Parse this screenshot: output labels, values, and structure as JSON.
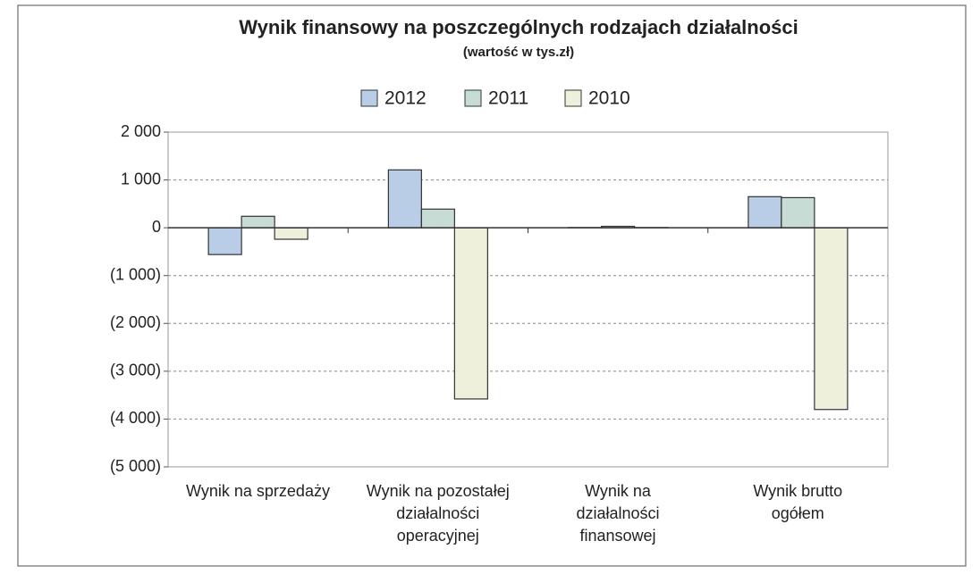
{
  "chart_data": {
    "type": "bar",
    "title": "Wynik finansowy na poszczególnych rodzajach działalności",
    "subtitle": "(wartość w tys.zł)",
    "categories": [
      "Wynik na sprzedaży",
      "Wynik na pozostałej\ndziałalności\noperacyjnej",
      "Wynik na\ndziałalności\nfinansowej",
      "Wynik brutto\nogółem"
    ],
    "series": [
      {
        "name": "2012",
        "color": "#b9cde6",
        "values": [
          -560,
          1210,
          5,
          650
        ]
      },
      {
        "name": "2011",
        "color": "#c6dcd5",
        "values": [
          240,
          390,
          30,
          630
        ]
      },
      {
        "name": "2010",
        "color": "#eff0dc",
        "values": [
          -240,
          -3580,
          5,
          -3800
        ]
      }
    ],
    "ylim": [
      -5000,
      2000
    ],
    "yticks": [
      {
        "value": 2000,
        "label": "2 000"
      },
      {
        "value": 1000,
        "label": "1 000"
      },
      0,
      {
        "value": -1000,
        "label": "(1 000)"
      },
      {
        "value": -2000,
        "label": "(2 000)"
      },
      {
        "value": -3000,
        "label": "(3 000)"
      },
      {
        "value": -4000,
        "label": "(4 000)"
      },
      {
        "value": -5000,
        "label": "(5 000)"
      }
    ],
    "grid": true,
    "legend": "top"
  }
}
